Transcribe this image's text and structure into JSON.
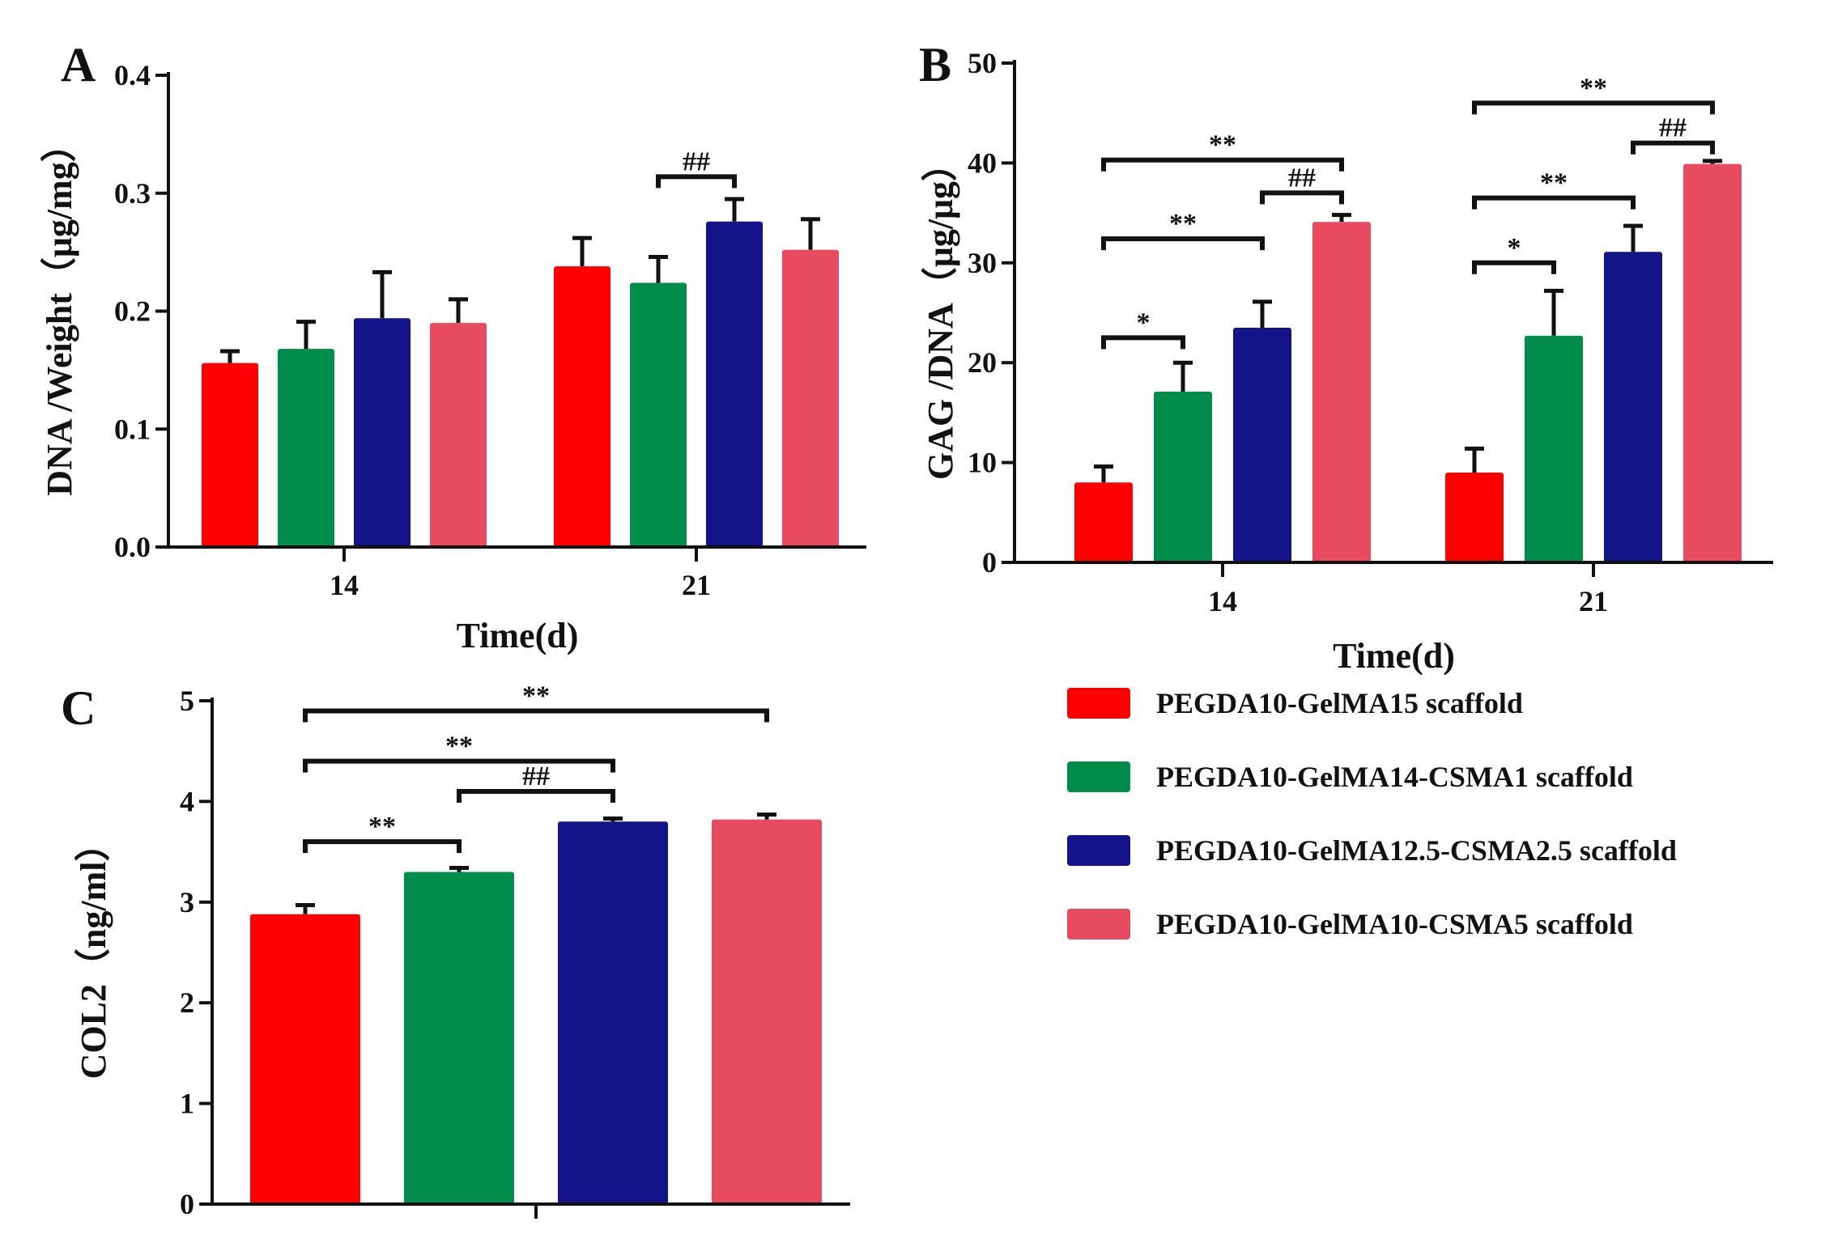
{
  "chart_data": [
    {
      "id": "A",
      "type": "bar",
      "panel_label": "A",
      "title": "",
      "xlabel": "Time(d)",
      "ylabel": "DNA /Weight（μg/mg）",
      "ylim": [
        0,
        0.4
      ],
      "yticks": [
        "0.0",
        "0.1",
        "0.2",
        "0.3",
        "0.4"
      ],
      "categories": [
        "14",
        "21"
      ],
      "series": [
        {
          "name": "PEGDA10-GelMA15 scaffold",
          "values": [
            0.156,
            0.238
          ],
          "errors": [
            0.01,
            0.024
          ]
        },
        {
          "name": "PEGDA10-GelMA14-CSMA1 scaffold",
          "values": [
            0.168,
            0.224
          ],
          "errors": [
            0.023,
            0.022
          ]
        },
        {
          "name": "PEGDA10-GelMA12.5-CSMA2.5 scaffold",
          "values": [
            0.194,
            0.276
          ],
          "errors": [
            0.039,
            0.019
          ]
        },
        {
          "name": "PEGDA10-GelMA10-CSMA5 scaffold",
          "values": [
            0.19,
            0.252
          ],
          "errors": [
            0.02,
            0.026
          ]
        }
      ],
      "annotations": [
        {
          "text": "##",
          "category": 1,
          "from": 1,
          "to": 2,
          "y": 0.314
        }
      ]
    },
    {
      "id": "B",
      "type": "bar",
      "panel_label": "B",
      "title": "",
      "xlabel": "Time(d)",
      "ylabel": "GAG /DNA（μg/μg）",
      "ylim": [
        0,
        50
      ],
      "yticks": [
        "0",
        "10",
        "20",
        "30",
        "40",
        "50"
      ],
      "categories": [
        "14",
        "21"
      ],
      "series": [
        {
          "name": "PEGDA10-GelMA15 scaffold",
          "values": [
            8.0,
            9.0
          ],
          "errors": [
            1.6,
            2.4
          ]
        },
        {
          "name": "PEGDA10-GelMA14-CSMA1 scaffold",
          "values": [
            17.1,
            22.7
          ],
          "errors": [
            2.9,
            4.5
          ]
        },
        {
          "name": "PEGDA10-GelMA12.5-CSMA2.5 scaffold",
          "values": [
            23.5,
            31.1
          ],
          "errors": [
            2.6,
            2.6
          ]
        },
        {
          "name": "PEGDA10-GelMA10-CSMA5 scaffold",
          "values": [
            34.1,
            39.9
          ],
          "errors": [
            0.7,
            0.3
          ]
        }
      ],
      "annotations": [
        {
          "text": "*",
          "category": 0,
          "from": 0,
          "to": 1,
          "y": 22.5
        },
        {
          "text": "**",
          "category": 0,
          "from": 0,
          "to": 2,
          "y": 32.4
        },
        {
          "text": "##",
          "category": 0,
          "from": 2,
          "to": 3,
          "y": 37.0
        },
        {
          "text": "**",
          "category": 0,
          "from": 0,
          "to": 3,
          "y": 40.3
        },
        {
          "text": "*",
          "category": 1,
          "from": 0,
          "to": 1,
          "y": 30.0
        },
        {
          "text": "**",
          "category": 1,
          "from": 0,
          "to": 2,
          "y": 36.5
        },
        {
          "text": "##",
          "category": 1,
          "from": 2,
          "to": 3,
          "y": 42.0
        },
        {
          "text": "**",
          "category": 1,
          "from": 0,
          "to": 3,
          "y": 46.0
        }
      ]
    },
    {
      "id": "C",
      "type": "bar",
      "panel_label": "C",
      "title": "",
      "xlabel": "",
      "ylabel": "COL2（ng/ml）",
      "ylim": [
        0,
        5
      ],
      "yticks": [
        "0",
        "1",
        "2",
        "3",
        "4",
        "5"
      ],
      "categories": [
        ""
      ],
      "series": [
        {
          "name": "PEGDA10-GelMA15 scaffold",
          "values": [
            2.88
          ],
          "errors": [
            0.09
          ]
        },
        {
          "name": "PEGDA10-GelMA14-CSMA1 scaffold",
          "values": [
            3.3
          ],
          "errors": [
            0.04
          ]
        },
        {
          "name": "PEGDA10-GelMA12.5-CSMA2.5 scaffold",
          "values": [
            3.8
          ],
          "errors": [
            0.03
          ]
        },
        {
          "name": "PEGDA10-GelMA10-CSMA5 scaffold",
          "values": [
            3.82
          ],
          "errors": [
            0.05
          ]
        }
      ],
      "annotations": [
        {
          "text": "**",
          "category": 0,
          "from": 0,
          "to": 1,
          "y": 3.6
        },
        {
          "text": "##",
          "category": 0,
          "from": 1,
          "to": 2,
          "y": 4.1
        },
        {
          "text": "**",
          "category": 0,
          "from": 0,
          "to": 2,
          "y": 4.4
        },
        {
          "text": "**",
          "category": 0,
          "from": 0,
          "to": 3,
          "y": 4.9
        }
      ]
    }
  ],
  "colors": {
    "PEGDA10-GelMA15 scaffold": "#fe0000",
    "PEGDA10-GelMA14-CSMA1 scaffold": "#008d4b",
    "PEGDA10-GelMA12.5-CSMA2.5 scaffold": "#13148a",
    "PEGDA10-GelMA10-CSMA5 scaffold": "#e84a5f",
    "axis": "#111111"
  },
  "legend": {
    "placement": "bottom-right",
    "items": [
      "PEGDA10-GelMA15 scaffold",
      "PEGDA10-GelMA14-CSMA1 scaffold",
      "PEGDA10-GelMA12.5-CSMA2.5 scaffold",
      "PEGDA10-GelMA10-CSMA5 scaffold"
    ]
  }
}
